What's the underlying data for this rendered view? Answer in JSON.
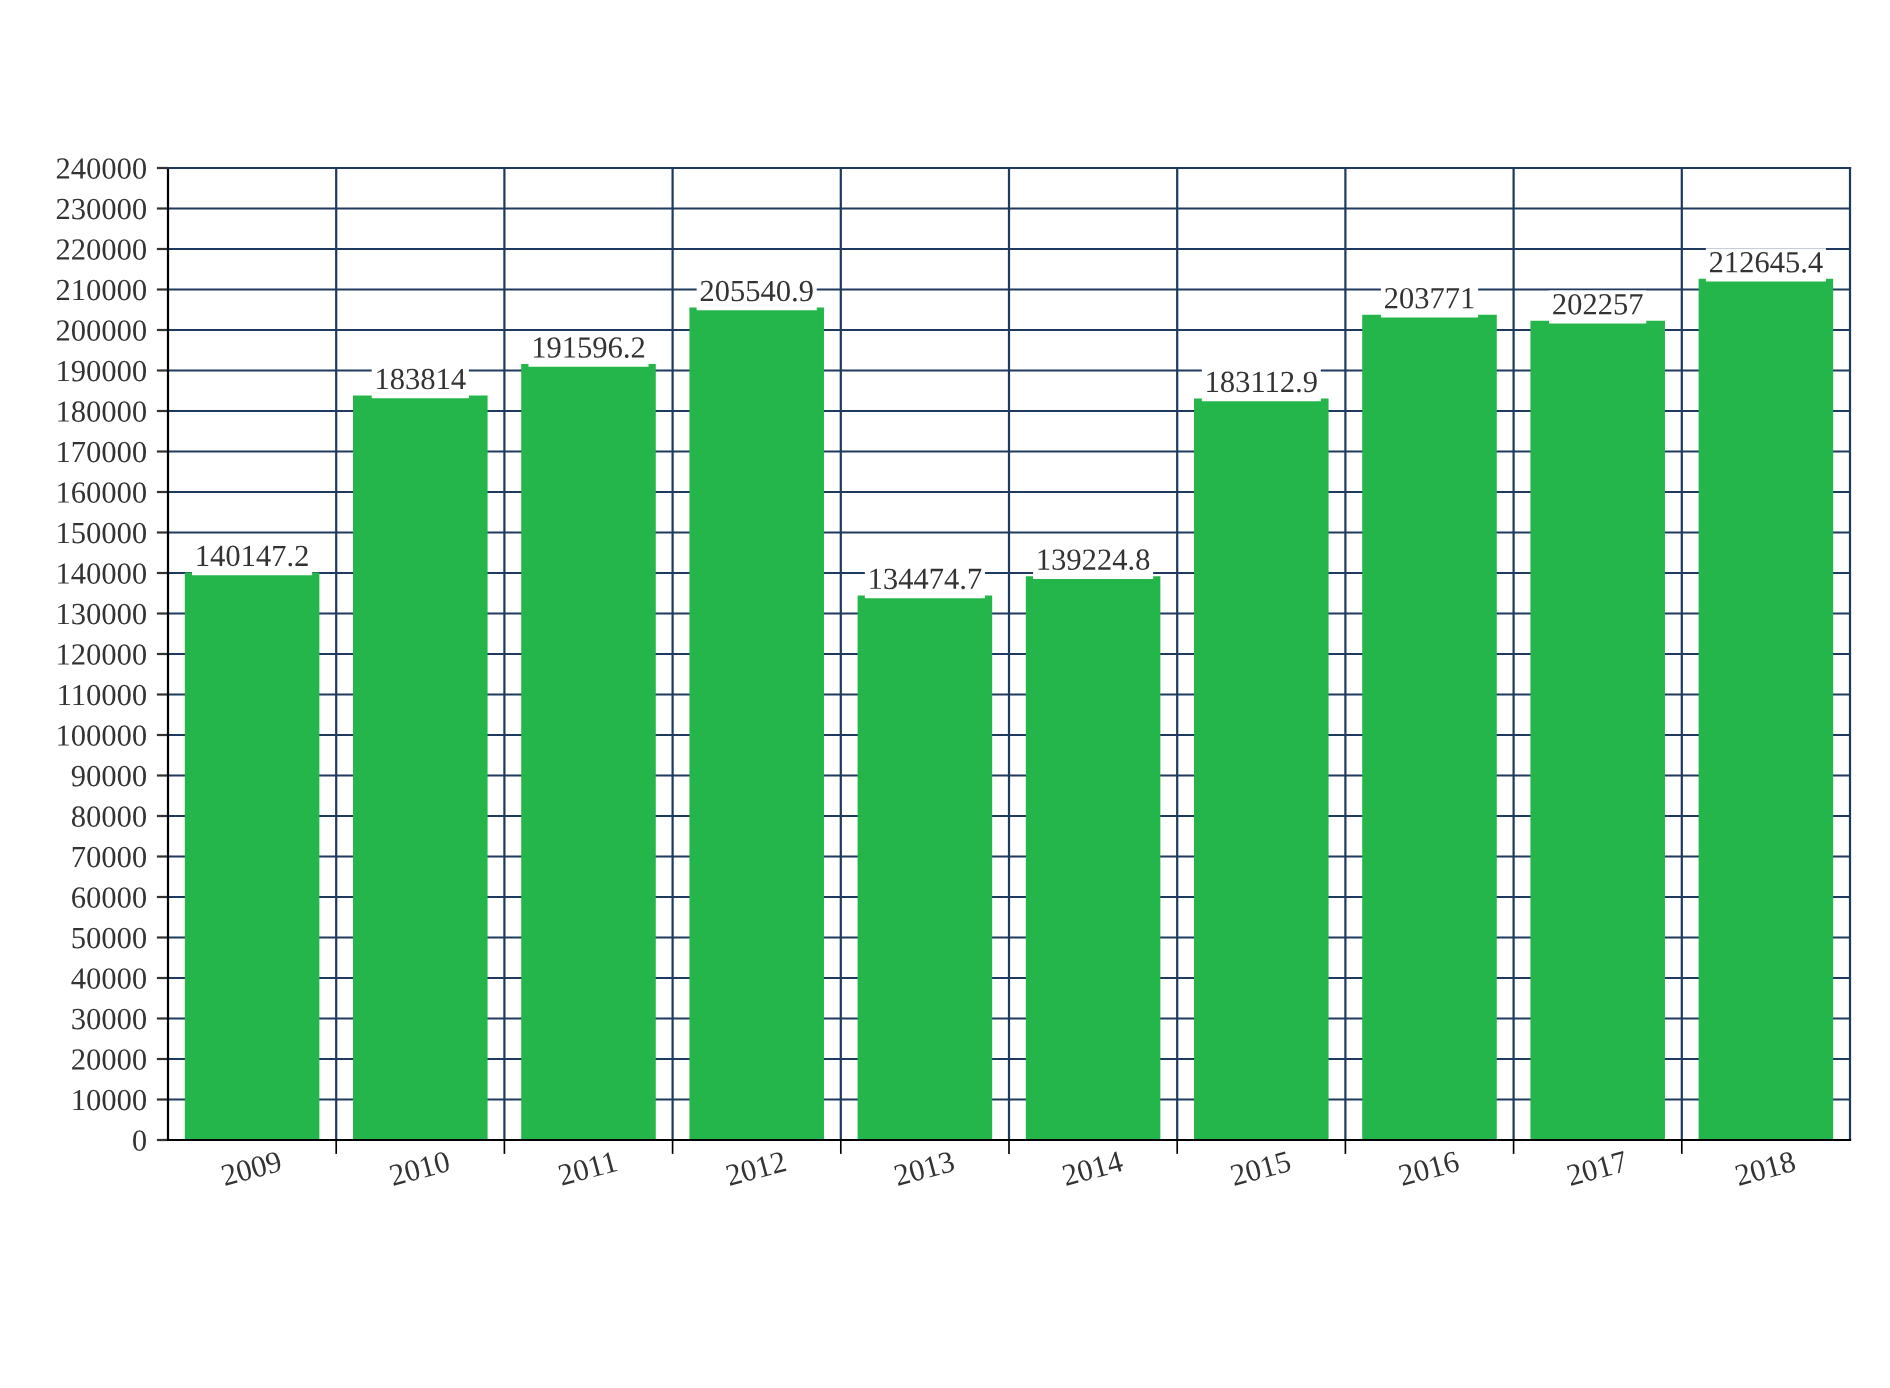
{
  "chart_data": {
    "type": "bar",
    "categories": [
      "2009",
      "2010",
      "2011",
      "2012",
      "2013",
      "2014",
      "2015",
      "2016",
      "2017",
      "2018"
    ],
    "values": [
      140147.2,
      183814,
      191596.2,
      205540.9,
      134474.7,
      139224.8,
      183112.9,
      203771,
      202257,
      212645.4
    ],
    "color": "#24b64a",
    "ylim": [
      0,
      240000
    ],
    "yticks": [
      0,
      10000,
      20000,
      30000,
      40000,
      50000,
      60000,
      70000,
      80000,
      90000,
      100000,
      110000,
      120000,
      130000,
      140000,
      150000,
      160000,
      170000,
      180000,
      190000,
      200000,
      210000,
      220000,
      230000,
      240000
    ],
    "grid": true,
    "data_labels": true
  }
}
